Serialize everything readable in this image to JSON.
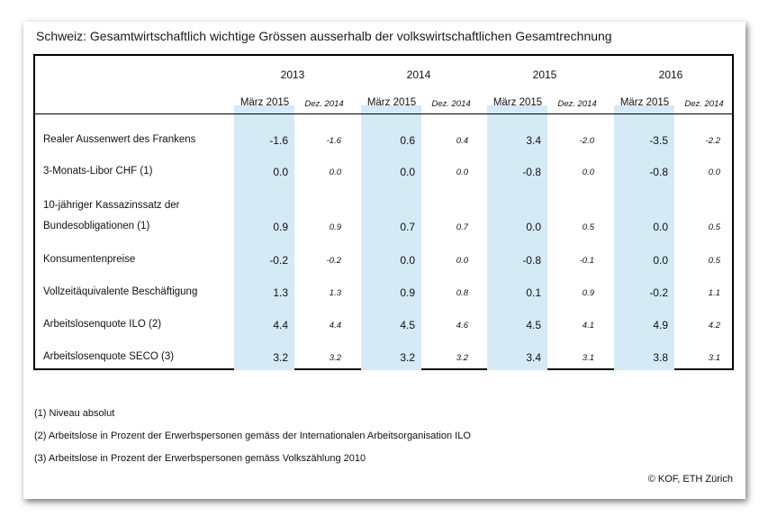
{
  "title": "Schweiz: Gesamtwirtschaftlich wichtige Grössen ausserhalb der volkswirtschaftlichen Gesamtrechnung",
  "years": [
    "2013",
    "2014",
    "2015",
    "2016"
  ],
  "sub_maerz": "März 2015",
  "sub_dez": "Dez. 2014",
  "rows": [
    {
      "label": "Realer Aussenwert des Frankens",
      "values": [
        "-1.6",
        "-1.6",
        "0.6",
        "0.4",
        "3.4",
        "-2.0",
        "-3.5",
        "-2.2"
      ]
    },
    {
      "label": "3-Monats-Libor CHF (1)",
      "values": [
        "0.0",
        "0.0",
        "0.0",
        "0.0",
        "-0.8",
        "0.0",
        "-0.8",
        "0.0"
      ]
    },
    {
      "label": "10-jähriger Kassazinssatz der",
      "label2": "Bundesobligationen  (1)",
      "values": [
        "0.9",
        "0.9",
        "0.7",
        "0.7",
        "0.0",
        "0.5",
        "0.0",
        "0.5"
      ]
    },
    {
      "label": "Konsumentenpreise",
      "values": [
        "-0.2",
        "-0.2",
        "0.0",
        "0.0",
        "-0.8",
        "-0.1",
        "0.0",
        "0.5"
      ]
    },
    {
      "label": "Vollzeitäquivalente Beschäftigung",
      "values": [
        "1.3",
        "1.3",
        "0.9",
        "0.8",
        "0.1",
        "0.9",
        "-0.2",
        "1.1"
      ]
    },
    {
      "label": "Arbeitslosenquote ILO (2)",
      "values": [
        "4.4",
        "4.4",
        "4.5",
        "4.6",
        "4.5",
        "4.1",
        "4.9",
        "4.2"
      ]
    },
    {
      "label": "Arbeitslosenquote SECO (3)",
      "values": [
        "3.2",
        "3.2",
        "3.2",
        "3.2",
        "3.4",
        "3.1",
        "3.8",
        "3.1"
      ]
    }
  ],
  "notes": [
    "(1)  Niveau absolut",
    "(2)  Arbeitslose in Prozent der Erwerbspersonen gemäss der Internationalen Arbeitsorganisation ILO",
    "(3)  Arbeitslose in Prozent der Erwerbspersonen gemäss Volkszählung 2010"
  ],
  "copyright": "© KOF, ETH Zürich",
  "colors": {
    "highlight_band": "#d4eaf5",
    "border": "#000000"
  }
}
